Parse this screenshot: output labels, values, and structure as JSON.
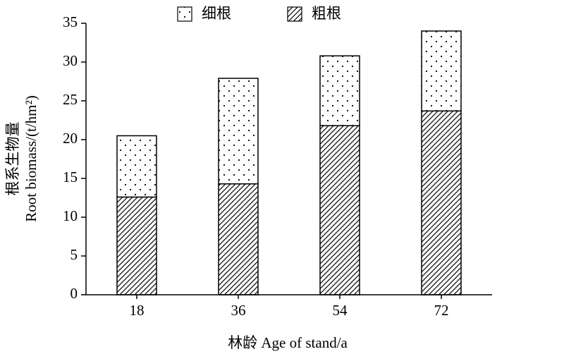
{
  "chart_data": {
    "type": "stacked_bar",
    "x_label": "林龄 Age of stand/a",
    "y_label": [
      "根系生物量",
      "Root biomass/(t/hm²)"
    ],
    "categories": [
      "18",
      "36",
      "54",
      "72"
    ],
    "series": [
      {
        "name": "细根",
        "color": "#000000",
        "pattern": "dots",
        "values": [
          7.9,
          13.6,
          9.0,
          10.3
        ]
      },
      {
        "name": "粗根",
        "color": "#000000",
        "pattern": "hatch",
        "values": [
          12.6,
          14.3,
          21.8,
          23.7
        ]
      }
    ],
    "ylim": [
      0,
      35
    ],
    "yticks": [
      0,
      5,
      10,
      15,
      20,
      25,
      30,
      35
    ],
    "grid": false
  }
}
